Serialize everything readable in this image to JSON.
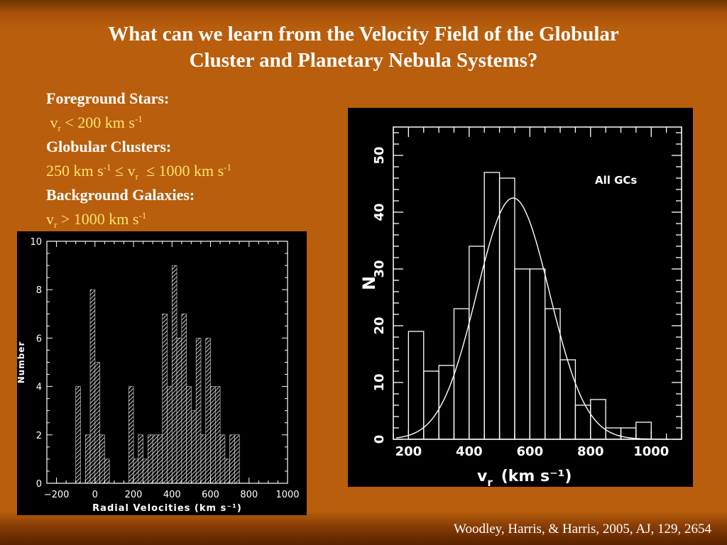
{
  "slide": {
    "title_line1": "What can we learn from the Velocity Field of the Globular",
    "title_line2": "Cluster and Planetary Nebula Systems?",
    "credit": "Woodley, Harris, & Harris, 2005, AJ, 129, 2654",
    "colors": {
      "background": "#b85e0c",
      "heading": "#ffffff",
      "value_text": "#ffe36b"
    }
  },
  "notes": {
    "foreground_heading": "Foreground Stars:",
    "foreground_v": "v",
    "foreground_v_sub": "r",
    "foreground_rest": " < 200 km s",
    "foreground_exp": "-1",
    "gc_heading": "Globular Clusters:",
    "gc_pre": "250 km s",
    "gc_exp1": "-1",
    "gc_mid": " ≤ v",
    "gc_sub": "r",
    "gc_post": "  ≤ 1000 km s",
    "gc_exp2": "-1",
    "bg_heading": "Background Galaxies:",
    "bg_v": "v",
    "bg_sub": "r",
    "bg_rest": " > 1000 km s",
    "bg_exp": "-1"
  },
  "chart_data": [
    {
      "type": "bar",
      "style": "hatched-histogram",
      "bin_width": 25,
      "x": [
        -100,
        -75,
        -50,
        -25,
        0,
        25,
        50,
        75,
        100,
        125,
        150,
        175,
        200,
        225,
        250,
        275,
        300,
        325,
        350,
        375,
        400,
        425,
        450,
        475,
        500,
        525,
        550,
        575,
        600,
        625,
        650,
        675,
        700,
        725,
        750,
        775,
        800,
        825,
        850
      ],
      "values": [
        4,
        0,
        2,
        8,
        5,
        2,
        1,
        0,
        0,
        0,
        0,
        4,
        1,
        2,
        1,
        2,
        2,
        2,
        7,
        4,
        9,
        6,
        7,
        4,
        3,
        6,
        2,
        6,
        4,
        4,
        2,
        1,
        2,
        2,
        0,
        0,
        0,
        0,
        0
      ],
      "xlabel": "Radial Velocities (km s⁻¹)",
      "ylabel": "Number",
      "xlim": [
        -250,
        1000
      ],
      "ylim": [
        0,
        10
      ],
      "xticks": [
        -200,
        0,
        200,
        400,
        600,
        800,
        1000
      ],
      "xtick_labels": [
        "−200",
        "0",
        "200",
        "400",
        "600",
        "800",
        "1000"
      ],
      "yticks": [
        0,
        2,
        4,
        6,
        8,
        10
      ],
      "ytick_labels": [
        "0",
        "2",
        "4",
        "6",
        "8",
        "10"
      ]
    },
    {
      "type": "bar",
      "style": "step-histogram-with-gaussian",
      "bin_width": 50,
      "x": [
        225,
        275,
        325,
        375,
        425,
        475,
        525,
        575,
        625,
        675,
        725,
        775,
        825,
        875,
        925,
        975
      ],
      "values": [
        19,
        12,
        13,
        23,
        34,
        47,
        46,
        30,
        30,
        23,
        14,
        6,
        7,
        2,
        2,
        3
      ],
      "gaussian": {
        "mean": 545,
        "sigma": 120,
        "peak": 42.5
      },
      "annotation": "All GCs",
      "xlabel": "v",
      "xlabel_sub": "r",
      "xlabel_units": "(km s⁻¹)",
      "ylabel": "N",
      "xlim": [
        150,
        1100
      ],
      "ylim": [
        0,
        55
      ],
      "xticks": [
        200,
        400,
        600,
        800,
        1000
      ],
      "xtick_labels": [
        "200",
        "400",
        "600",
        "800",
        "1000"
      ],
      "yticks": [
        0,
        10,
        20,
        30,
        40,
        50
      ],
      "ytick_labels": [
        "0",
        "10",
        "20",
        "30",
        "40",
        "50"
      ]
    }
  ]
}
